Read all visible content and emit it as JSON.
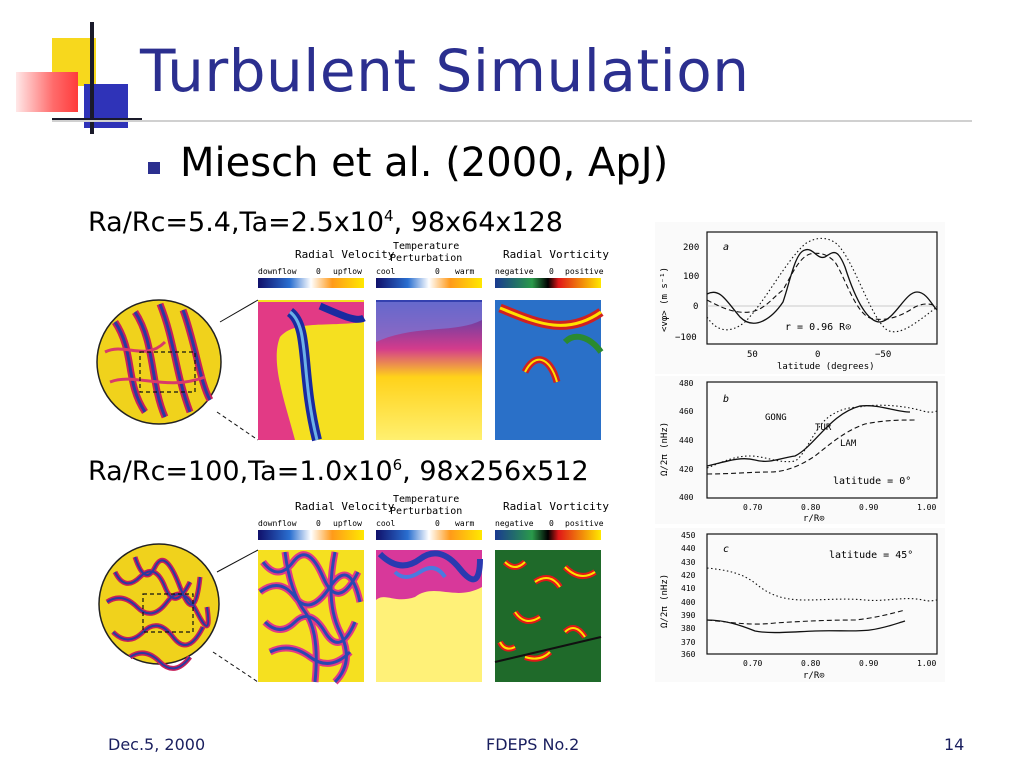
{
  "title": "Turbulent Simulation",
  "bullet": "Miesch et al. (2000, ApJ)",
  "case1": {
    "pre": "Ra/Rc=5.4,Ta=2.5x10",
    "exp": "4",
    "post": ", 98x64x128"
  },
  "case2": {
    "pre": "Ra/Rc=100,Ta=1.0x10",
    "exp": "6",
    "post": ", 98x256x512"
  },
  "panel_headers": {
    "radial_velocity": "Radial Velocity",
    "temperature_1": "Temperature",
    "temperature_2": "Perturbation",
    "radial_vorticity": "Radial Vorticity",
    "downflow": "downflow",
    "upflow": "upflow",
    "zero": "0",
    "cool": "cool",
    "warm": "warm",
    "negative": "negative",
    "positive": "positive"
  },
  "plot_a": {
    "panel_letter": "a",
    "ylabel": "<vφ> (m s⁻¹)",
    "xlabel": "latitude (degrees)",
    "yticks": [
      "200",
      "100",
      "0",
      "−100"
    ],
    "xticks": [
      "50",
      "0",
      "−50"
    ],
    "annotation": "r = 0.96 R⊙"
  },
  "plot_b": {
    "panel_letter": "b",
    "ylabel": "Ω/2π (nHz)",
    "yticks": [
      "480",
      "460",
      "440",
      "420",
      "400"
    ],
    "xticks": [
      "0.70",
      "0.80",
      "0.90",
      "1.00"
    ],
    "xlabel": "r/R⊙",
    "gong": "GONG",
    "tur": "TUR",
    "lam": "LAM",
    "annotation": "latitude = 0°"
  },
  "plot_c": {
    "panel_letter": "c",
    "ylabel": "Ω/2π (nHz)",
    "yticks": [
      "450",
      "440",
      "430",
      "420",
      "410",
      "400",
      "390",
      "380",
      "370",
      "360"
    ],
    "xticks": [
      "0.70",
      "0.80",
      "0.90",
      "1.00"
    ],
    "xlabel": "r/R⊙",
    "annotation": "latitude = 45°"
  },
  "footer": {
    "date": "Dec.5, 2000",
    "center": "FDEPS No.2",
    "page": "14"
  }
}
